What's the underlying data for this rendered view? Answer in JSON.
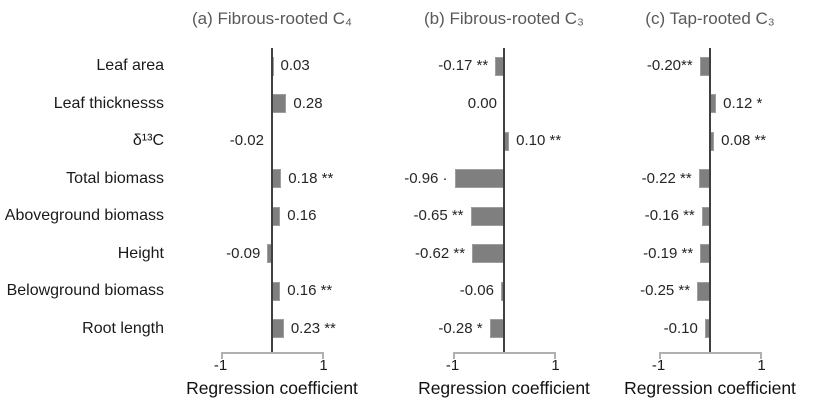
{
  "chart_data": {
    "type": "bar",
    "orientation": "horizontal",
    "title": "",
    "xlabel": "Regression coefficient",
    "xlim": [
      -1,
      1
    ],
    "xticks": [
      -1,
      1
    ],
    "xtick_labels": [
      "-1",
      "1"
    ],
    "grid": false,
    "legend": "none",
    "bar_color": "#7f7f7f",
    "zero_line_color": "#3f3f3f",
    "axis_color": "#b0b0b0",
    "title_color": "#595959",
    "categories": [
      "Leaf area",
      "Leaf thicknesss",
      "δ¹³C",
      "Total biomass",
      "Aboveground biomass",
      "Height",
      "Belowground biomass",
      "Root length"
    ],
    "panels": [
      {
        "id": "a",
        "title": "(a) Fibrous-rooted C₄",
        "values": [
          0.03,
          0.28,
          -0.02,
          0.18,
          0.16,
          -0.09,
          0.16,
          0.23
        ],
        "labels": [
          "0.03",
          "0.28",
          "-0.02",
          "0.18 **",
          "0.16",
          "-0.09",
          "0.16 **",
          "0.23 **"
        ]
      },
      {
        "id": "b",
        "title": "(b) Fibrous-rooted C₃",
        "values": [
          -0.17,
          0.0,
          0.1,
          -0.96,
          -0.65,
          -0.62,
          -0.06,
          -0.28
        ],
        "labels": [
          "-0.17 **",
          "0.00",
          "0.10 **",
          "-0.96 ·",
          "-0.65 **",
          "-0.62 **",
          "-0.06",
          "-0.28 *"
        ]
      },
      {
        "id": "c",
        "title": "(c) Tap-rooted C₃",
        "values": [
          -0.2,
          0.12,
          0.08,
          -0.22,
          -0.16,
          -0.19,
          -0.25,
          -0.1
        ],
        "labels": [
          "-0.20**",
          "0.12 *",
          "0.08 **",
          "-0.22 **",
          "-0.16 **",
          "-0.19 **",
          "-0.25 **",
          "-0.10"
        ]
      }
    ]
  }
}
